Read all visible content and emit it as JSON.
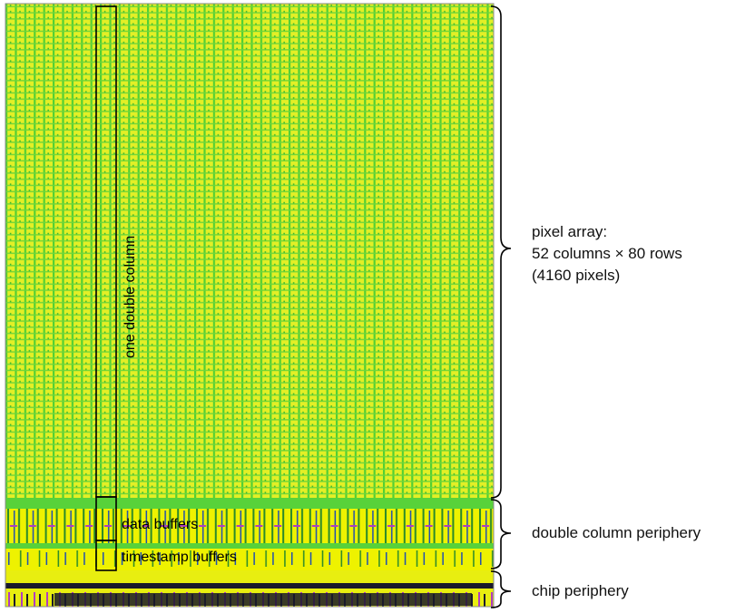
{
  "labels": {
    "pixel_array_line1": "pixel array:",
    "pixel_array_line2": "52 columns × 80 rows",
    "pixel_array_line3": "(4160 pixels)",
    "double_column_periphery": "double column periphery",
    "chip_periphery": "chip periphery",
    "one_double_column": "one double column",
    "data_buffers": "data buffers",
    "timestamp_buffers": "timestamp buffers"
  },
  "array": {
    "columns": 52,
    "rows": 80,
    "pixels": 4160
  },
  "colors": {
    "array_fill": "#e6f227",
    "grid_green": "#46cc2e",
    "periphery_yellow": "#f2f200",
    "magenta": "#b03cc0",
    "dark": "#1a1a2a",
    "outline": "#000000"
  }
}
